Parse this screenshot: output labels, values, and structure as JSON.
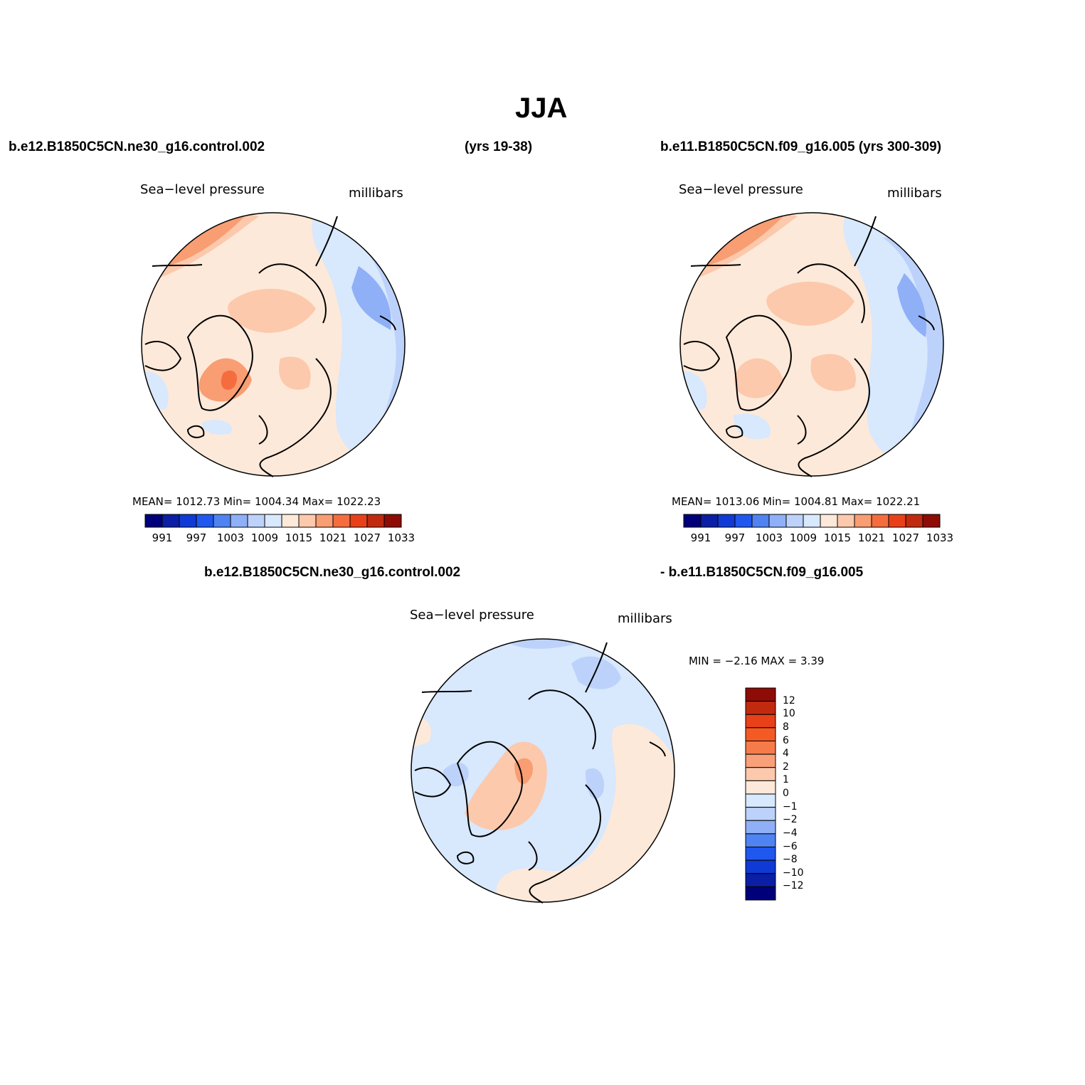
{
  "figure": {
    "title": "JJA"
  },
  "panels": {
    "top_left": {
      "header": "b.e12.B1850C5CN.ne30_g16.control.002",
      "years": "(yrs 19-38)",
      "field": "Sea−level pressure",
      "units": "millibars",
      "stats": "MEAN=  1012.73   Min=  1004.34   Max=  1022.23"
    },
    "top_right": {
      "header": "b.e11.B1850C5CN.f09_g16.005 (yrs 300-309)",
      "field": "Sea−level pressure",
      "units": "millibars",
      "stats": "MEAN=  1013.06   Min=  1004.81   Max=  1022.21"
    },
    "bottom": {
      "header_left": "b.e12.B1850C5CN.ne30_g16.control.002",
      "header_right": "- b.e11.B1850C5CN.f09_g16.005",
      "field": "Sea−level pressure",
      "units": "millibars",
      "minmax": "MIN =   −2.16  MAX =     3.39"
    }
  },
  "colorbar_abs": {
    "colors": [
      "#00007a",
      "#0a1fa5",
      "#0f3ad6",
      "#2057ef",
      "#4f83f2",
      "#8fb0f7",
      "#bdd2fa",
      "#d8e8fd",
      "#fde9d9",
      "#fcc9ac",
      "#f99d72",
      "#f56d3f",
      "#e8411a",
      "#c22a0f",
      "#8e0c05"
    ],
    "tick_labels": [
      "991",
      "997",
      "1003",
      "1009",
      "1015",
      "1021",
      "1027",
      "1033"
    ]
  },
  "colorbar_diff": {
    "colors_top_to_bottom": [
      "#8e0c05",
      "#c22a0f",
      "#e8411a",
      "#f55a25",
      "#f57c4a",
      "#f9a07a",
      "#fcc9ac",
      "#fde9d9",
      "#d8e8fd",
      "#bdd2fa",
      "#8fb0f7",
      "#4f83f2",
      "#2057ef",
      "#0f3ad6",
      "#0a1fa5",
      "#00007a"
    ],
    "tick_labels": [
      "12",
      "10",
      "8",
      "6",
      "4",
      "2",
      "1",
      "0",
      "−1",
      "−2",
      "−4",
      "−6",
      "−8",
      "−10",
      "−12"
    ]
  },
  "colors": {
    "land_outline": "#000000",
    "background": "#ffffff"
  }
}
